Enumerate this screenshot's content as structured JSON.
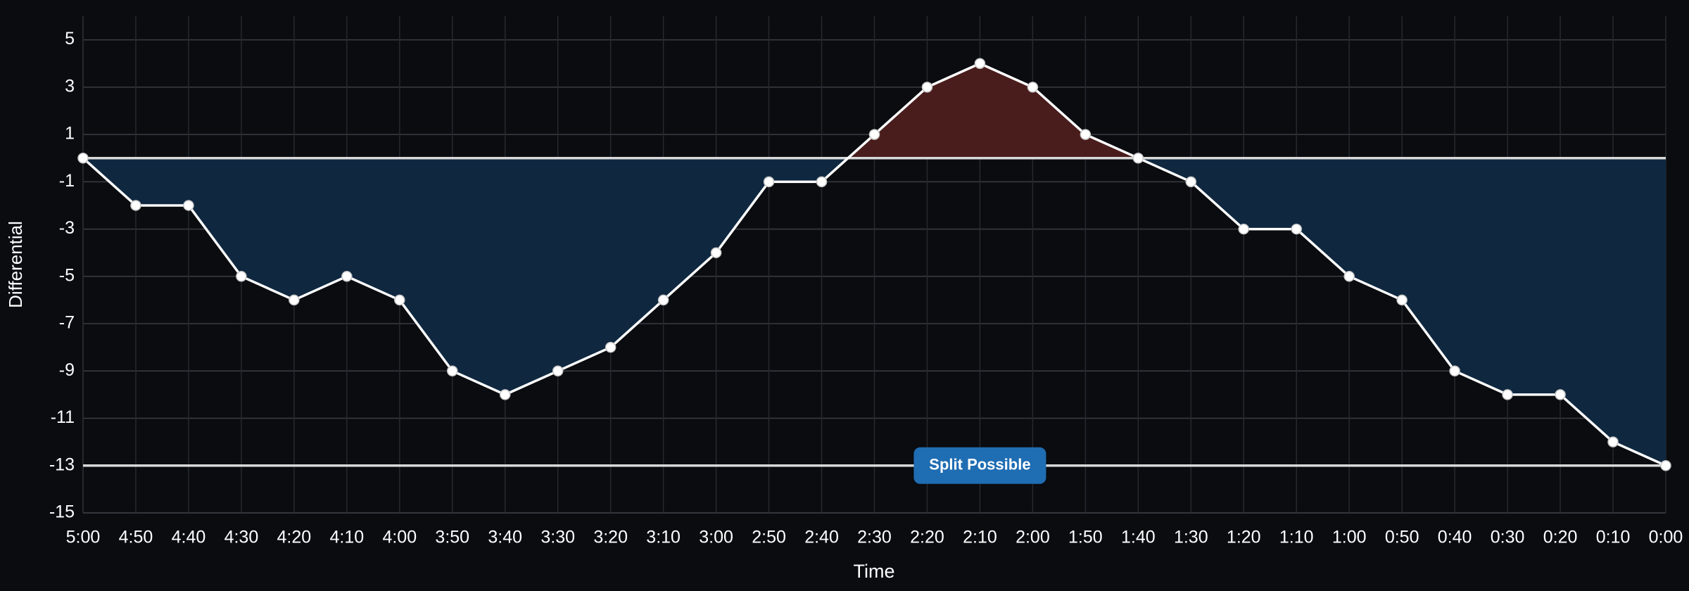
{
  "chart_data": {
    "type": "line",
    "x_label": "Time",
    "y_label": "Differential",
    "categories": [
      "5:00",
      "4:50",
      "4:40",
      "4:30",
      "4:20",
      "4:10",
      "4:00",
      "3:50",
      "3:40",
      "3:30",
      "3:20",
      "3:10",
      "3:00",
      "2:50",
      "2:40",
      "2:30",
      "2:20",
      "2:10",
      "2:00",
      "1:50",
      "1:40",
      "1:30",
      "1:20",
      "1:10",
      "1:00",
      "0:50",
      "0:40",
      "0:30",
      "0:20",
      "0:10",
      "0:00"
    ],
    "series": [
      {
        "color": "#ffffff",
        "values": [
          0,
          -2,
          -2,
          -5,
          -6,
          -5,
          -6,
          -9,
          -10,
          -9,
          -8,
          -6,
          -4,
          -1,
          -1,
          1,
          3,
          4,
          3,
          1,
          0,
          -1,
          -3,
          -3,
          -5,
          -6,
          -9,
          -10,
          -10,
          -12,
          -13
        ]
      }
    ],
    "fill_above_color": "#4a1d1d",
    "fill_below_color": "#0f2840",
    "reference_lines": [
      0,
      -13
    ],
    "annotation": {
      "text": "Split Possible",
      "x": "2:10",
      "y": -13,
      "color": "#1f6db3"
    },
    "ylim": [
      -15,
      6
    ],
    "yticks": [
      -15,
      -13,
      -11,
      -9,
      -7,
      -5,
      -3,
      -1,
      1,
      3,
      5
    ],
    "grid": true
  }
}
